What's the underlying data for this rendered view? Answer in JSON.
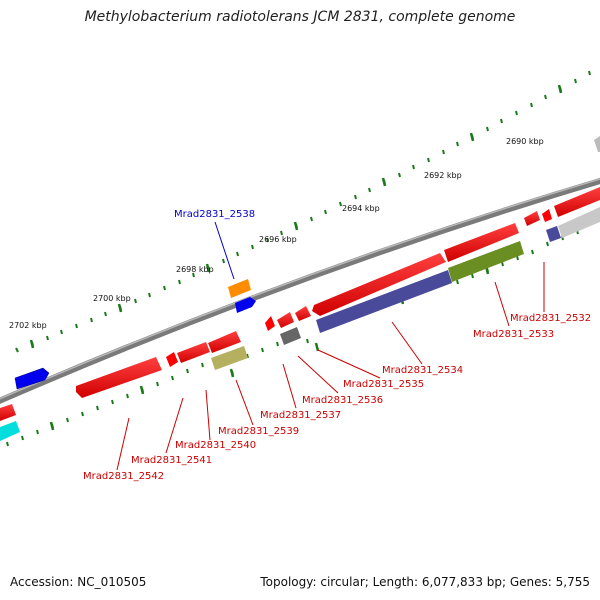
{
  "title": "Methylobacterium radiotolerans JCM 2831, complete genome",
  "footer": {
    "accession": "Accession: NC_010505",
    "summary": "Topology: circular; Length: 6,077,833 bp; Genes: 5,755"
  },
  "scale_labels": [
    "2690 kbp",
    "2692 kbp",
    "2694 kbp",
    "2696 kbp",
    "2698 kbp",
    "2700 kbp",
    "2702 kbp"
  ],
  "gene_labels": {
    "g2538": "Mrad2831_2538",
    "g2532": "Mrad2831_2532",
    "g2533": "Mrad2831_2533",
    "g2534": "Mrad2831_2534",
    "g2535": "Mrad2831_2535",
    "g2536": "Mrad2831_2536",
    "g2537": "Mrad2831_2537",
    "g2539": "Mrad2831_2539",
    "g2540": "Mrad2831_2540",
    "g2541": "Mrad2831_2541",
    "g2542": "Mrad2831_2542"
  },
  "colors": {
    "backbone": "#808080",
    "scale_tick": "#1a7a1a",
    "cds": "#ff0000",
    "label_red": "#cc0000",
    "label_blue": "#0000cc",
    "blue": "#0000ee",
    "navy": "#4a4a9a",
    "olive": "#6b8e23",
    "khaki": "#b5b060",
    "orange": "#ff8c00",
    "cyan": "#00dddd",
    "grey": "#bbbbbb"
  }
}
